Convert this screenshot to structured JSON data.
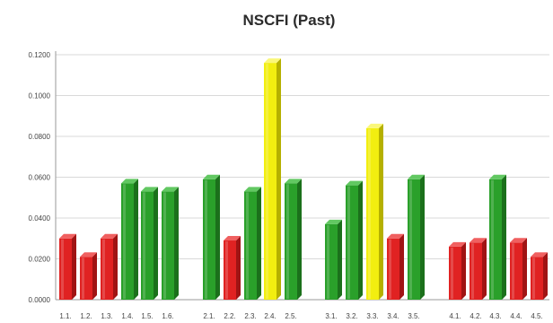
{
  "chart_data": {
    "type": "bar",
    "title": "NSCFI (Past)",
    "xlabel": "",
    "ylabel": "",
    "ylim": [
      0,
      0.12
    ],
    "yticks": [
      "0.0000",
      "0.0200",
      "0.0400",
      "0.0600",
      "0.0800",
      "0.1000",
      "0.1200"
    ],
    "grid": true,
    "legend": "none",
    "groups": [
      {
        "categories": [
          "1.1.",
          "1.2.",
          "1.3.",
          "1.4.",
          "1.5.",
          "1.6."
        ],
        "values": [
          0.03,
          0.021,
          0.03,
          0.057,
          0.053,
          0.053
        ],
        "colors": [
          "red",
          "red",
          "red",
          "green",
          "green",
          "green"
        ]
      },
      {
        "categories": [
          "2.1.",
          "2.2.",
          "2.3.",
          "2.4.",
          "2.5."
        ],
        "values": [
          0.059,
          0.029,
          0.053,
          0.116,
          0.057
        ],
        "colors": [
          "green",
          "red",
          "green",
          "yellow",
          "green"
        ]
      },
      {
        "categories": [
          "3.1.",
          "3.2.",
          "3.3.",
          "3.4.",
          "3.5."
        ],
        "values": [
          0.037,
          0.056,
          0.084,
          0.03,
          0.059
        ],
        "colors": [
          "green",
          "green",
          "yellow",
          "red",
          "green"
        ]
      },
      {
        "categories": [
          "4.1.",
          "4.2.",
          "4.3.",
          "4.4.",
          "4.5."
        ],
        "values": [
          0.026,
          0.028,
          0.059,
          0.028,
          0.021
        ],
        "colors": [
          "red",
          "red",
          "green",
          "red",
          "red"
        ]
      }
    ],
    "palette": {
      "red": {
        "front": "#e02222",
        "side": "#a01414",
        "top": "#f06060"
      },
      "green": {
        "front": "#2aa02a",
        "side": "#1b701b",
        "top": "#62c862"
      },
      "yellow": {
        "front": "#f2ee10",
        "side": "#b5b000",
        "top": "#faf77a"
      }
    }
  }
}
